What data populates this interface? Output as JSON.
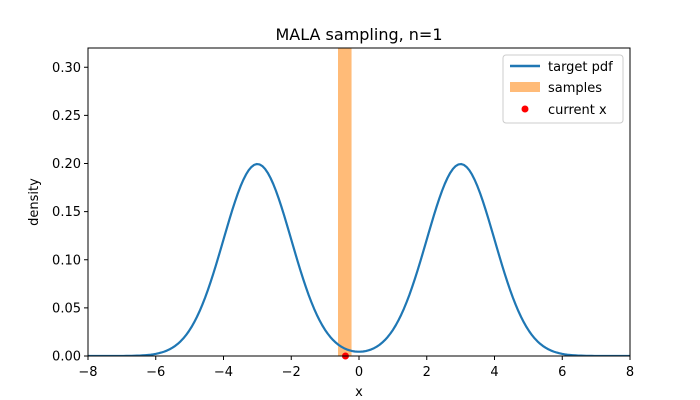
{
  "chart_data": {
    "type": "line",
    "title": "MALA sampling, n=1",
    "xlabel": "x",
    "ylabel": "density",
    "xlim": [
      -8,
      8
    ],
    "ylim": [
      0,
      0.32
    ],
    "xticks": [
      -8,
      -6,
      -4,
      -2,
      0,
      2,
      4,
      6,
      8
    ],
    "yticks": [
      0.0,
      0.05,
      0.1,
      0.15,
      0.2,
      0.25,
      0.3
    ],
    "grid": false,
    "legend_position": "top-right",
    "series": [
      {
        "name": "target pdf",
        "kind": "line",
        "color": "#1f77b4",
        "mixture": {
          "means": [
            -3,
            3
          ],
          "sd": 1,
          "weights": [
            0.5,
            0.5
          ]
        },
        "x_range": [
          -8,
          8
        ],
        "num_points": 200
      },
      {
        "name": "samples",
        "kind": "histogram",
        "color": "#ffbb78",
        "bins": [
          {
            "x0": -0.62,
            "x1": -0.22,
            "density": 2.5
          }
        ]
      },
      {
        "name": "current x",
        "kind": "scatter",
        "color": "#ff0000",
        "points": [
          {
            "x": -0.4,
            "y": 0
          }
        ]
      }
    ]
  }
}
